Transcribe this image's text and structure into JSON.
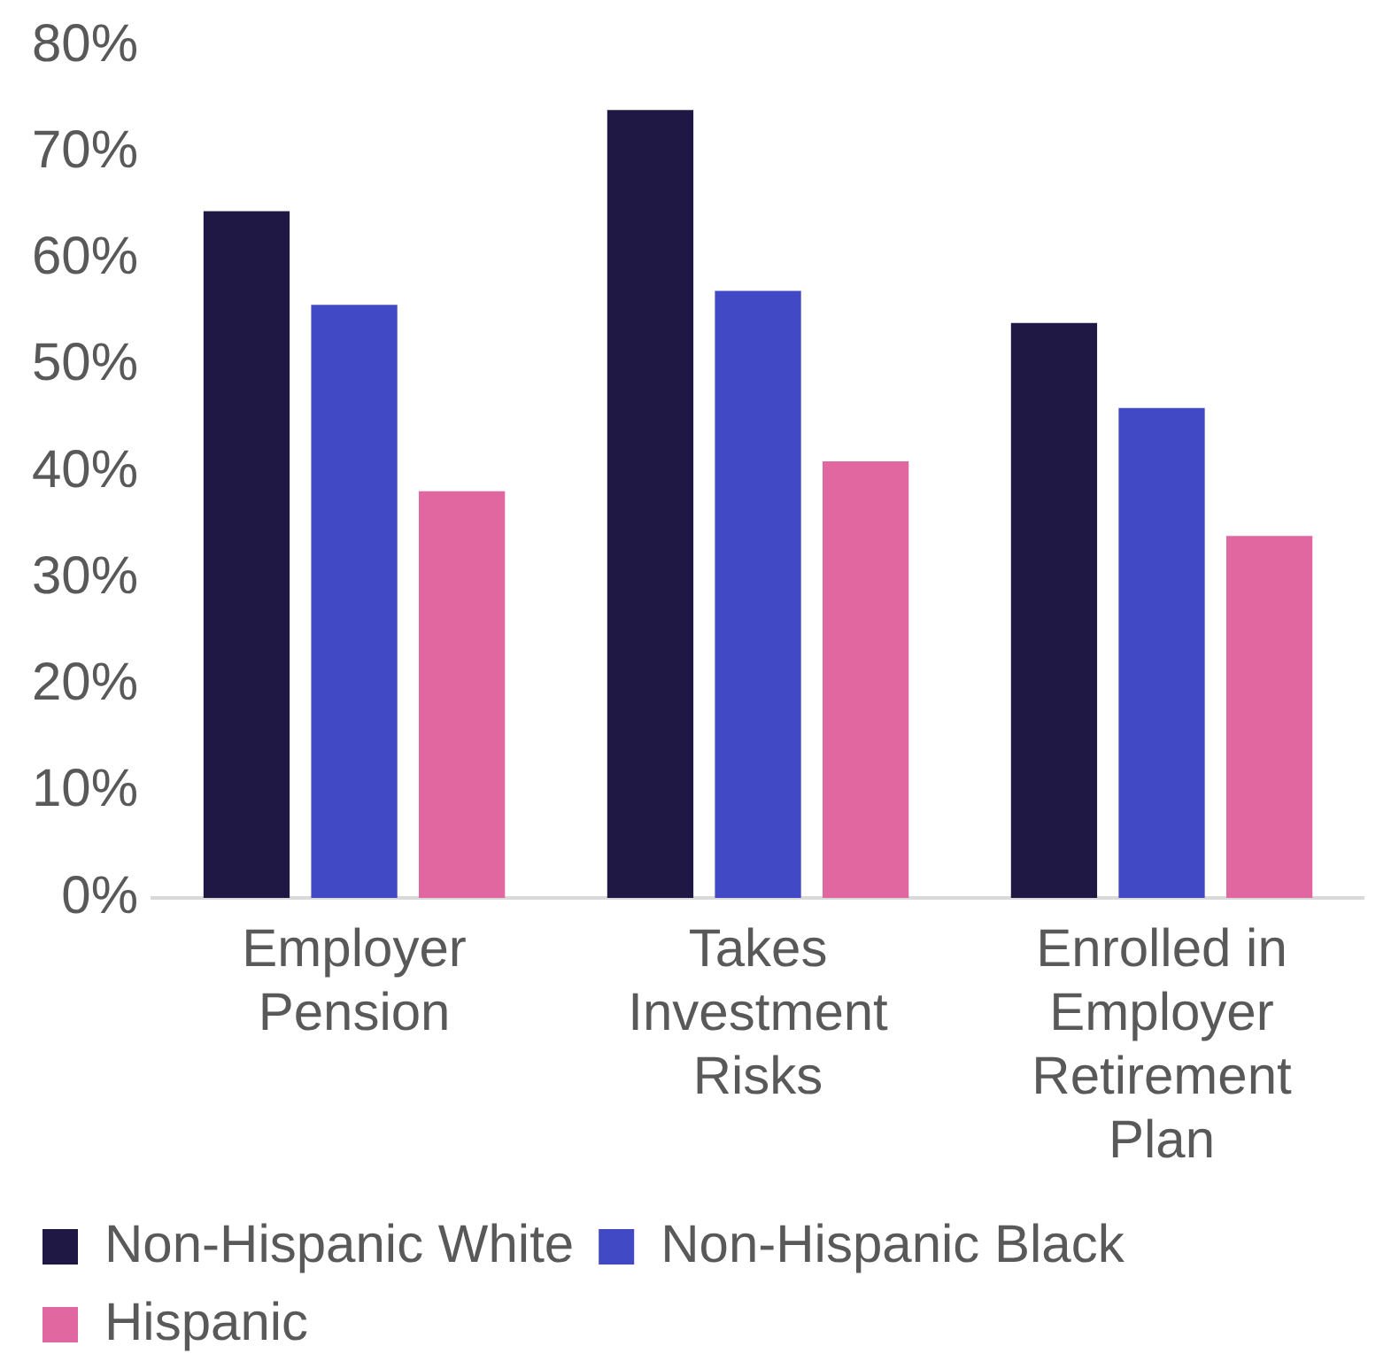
{
  "chart_data": {
    "type": "bar",
    "categories": [
      "Employer Pension",
      "Takes Investment Risks",
      "Enrolled in Employer Retirement Plan"
    ],
    "series": [
      {
        "name": "Non-Hispanic White",
        "color": "#1f1845",
        "values": [
          64.5,
          74,
          54
        ]
      },
      {
        "name": "Non-Hispanic Black",
        "color": "#4149c4",
        "values": [
          55.7,
          57,
          46
        ]
      },
      {
        "name": "Hispanic",
        "color": "#e0679f",
        "values": [
          38.2,
          41,
          34
        ]
      }
    ],
    "ylim": [
      0,
      80
    ],
    "yticks": [
      {
        "value": 0,
        "label": "0%"
      },
      {
        "value": 10,
        "label": "10%"
      },
      {
        "value": 20,
        "label": "20%"
      },
      {
        "value": 30,
        "label": "30%"
      },
      {
        "value": 40,
        "label": "40%"
      },
      {
        "value": 50,
        "label": "50%"
      },
      {
        "value": 60,
        "label": "60%"
      },
      {
        "value": 70,
        "label": "70%"
      },
      {
        "value": 80,
        "label": "80%"
      }
    ],
    "grid": false,
    "legend": "bottom"
  }
}
